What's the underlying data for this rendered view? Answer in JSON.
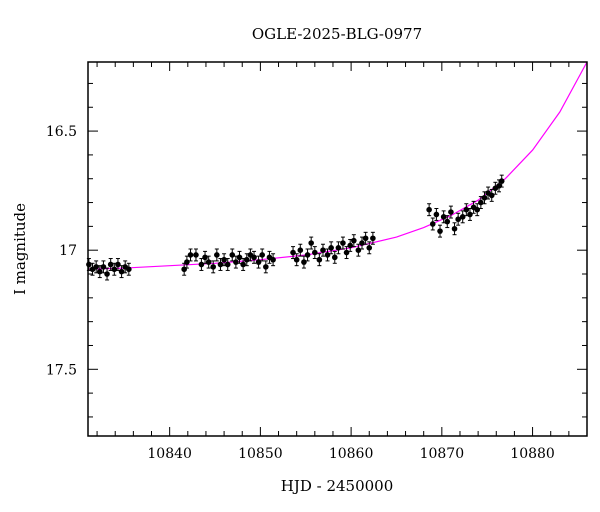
{
  "chart_data": {
    "type": "scatter",
    "title": "OGLE-2025-BLG-0977",
    "xlabel": "HJD - 2450000",
    "ylabel": "I magnitude",
    "xlim": [
      10831,
      10886
    ],
    "ylim": [
      17.78,
      16.21
    ],
    "y_inverted": true,
    "x_ticks": [
      10840,
      10850,
      10860,
      10870,
      10880
    ],
    "y_ticks": [
      16.5,
      17,
      17.5
    ],
    "y_tick_labels": [
      "16.5",
      "17",
      "17.5"
    ],
    "x_minor_step": 2,
    "y_minor_step": 0.1,
    "grid": false,
    "colors": {
      "data": "#000000",
      "model": "#ff00ff",
      "frame": "#000000"
    },
    "series": [
      {
        "kind": "points_with_errorbars",
        "x": [
          10831.1,
          10831.5,
          10831.9,
          10832.3,
          10832.7,
          10833.1,
          10833.5,
          10833.9,
          10834.3,
          10834.7,
          10835.1,
          10835.5,
          10841.6,
          10841.9,
          10842.3,
          10842.9,
          10843.5,
          10843.9,
          10844.3,
          10844.8,
          10845.2,
          10845.6,
          10846.0,
          10846.4,
          10846.9,
          10847.3,
          10847.7,
          10848.1,
          10848.5,
          10848.9,
          10849.3,
          10849.8,
          10850.2,
          10850.6,
          10851.0,
          10851.4,
          10853.6,
          10854.0,
          10854.4,
          10854.8,
          10855.2,
          10855.6,
          10856.0,
          10856.5,
          10856.9,
          10857.4,
          10857.8,
          10858.2,
          10858.6,
          10859.1,
          10859.5,
          10859.9,
          10860.3,
          10860.8,
          10861.2,
          10861.6,
          10862.0,
          10862.4,
          10868.6,
          10869.0,
          10869.4,
          10869.8,
          10870.2,
          10870.6,
          10871.0,
          10871.4,
          10871.8,
          10872.3,
          10872.7,
          10873.1,
          10873.5,
          10873.9,
          10874.3,
          10874.7,
          10875.1,
          10875.5,
          10875.9,
          10876.3,
          10876.6
        ],
        "y": [
          17.06,
          17.08,
          17.07,
          17.09,
          17.07,
          17.1,
          17.06,
          17.08,
          17.06,
          17.09,
          17.07,
          17.08,
          17.08,
          17.05,
          17.02,
          17.02,
          17.06,
          17.03,
          17.05,
          17.07,
          17.02,
          17.06,
          17.04,
          17.06,
          17.02,
          17.05,
          17.03,
          17.06,
          17.04,
          17.02,
          17.03,
          17.05,
          17.02,
          17.07,
          17.03,
          17.04,
          17.01,
          17.04,
          17.0,
          17.05,
          17.02,
          16.97,
          17.01,
          17.04,
          17.0,
          17.02,
          16.99,
          17.03,
          16.99,
          16.97,
          17.01,
          16.98,
          16.96,
          17.0,
          16.97,
          16.95,
          16.99,
          16.95,
          16.83,
          16.89,
          16.85,
          16.92,
          16.86,
          16.88,
          16.84,
          16.91,
          16.87,
          16.86,
          16.83,
          16.85,
          16.82,
          16.83,
          16.8,
          16.78,
          16.76,
          16.77,
          16.74,
          16.73,
          16.71
        ],
        "yerr": 0.025
      },
      {
        "kind": "model_curve",
        "x": [
          10831,
          10835,
          10840,
          10845,
          10850,
          10855,
          10860,
          10865,
          10868,
          10871,
          10874,
          10877,
          10880,
          10883,
          10886
        ],
        "y": [
          17.08,
          17.075,
          17.065,
          17.055,
          17.04,
          17.02,
          16.99,
          16.945,
          16.905,
          16.855,
          16.79,
          16.7,
          16.58,
          16.42,
          16.21
        ]
      }
    ]
  }
}
